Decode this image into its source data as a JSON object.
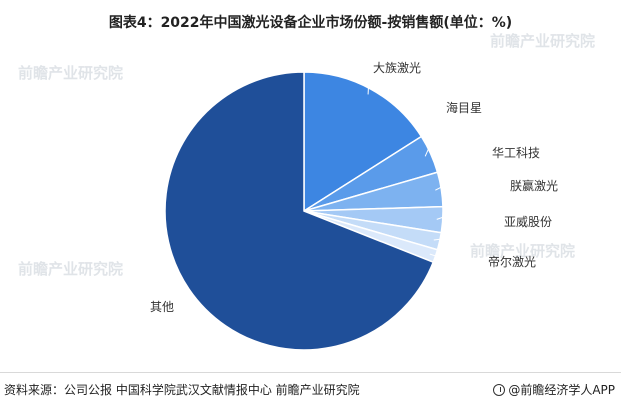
{
  "title": "图表4：2022年中国激光设备企业市场份额-按销售额(单位：%)",
  "chart_data": {
    "type": "pie",
    "labels": [
      "大族激光",
      "海目星",
      "华工科技",
      "朕赢激光",
      "亚威股份",
      "帝尔激光",
      "其他"
    ],
    "values": [
      16.0,
      4.5,
      4.0,
      3.0,
      2.0,
      1.5,
      69.0
    ],
    "colors": [
      "#3d86e2",
      "#5a9bea",
      "#7db2f0",
      "#a4c9f5",
      "#c4dcf8",
      "#dbe9fb",
      "#1f4f99"
    ],
    "start_angle_deg": 0,
    "direction": "clockwise"
  },
  "footer": {
    "source": "资料来源：公司公报 中国科学院武汉文献情报中心 前瞻产业研究院",
    "brand": "@前瞻经济学人APP"
  },
  "watermark": "前瞻产业研究院",
  "icons": {
    "brand": "qianzhan-logo-icon"
  }
}
